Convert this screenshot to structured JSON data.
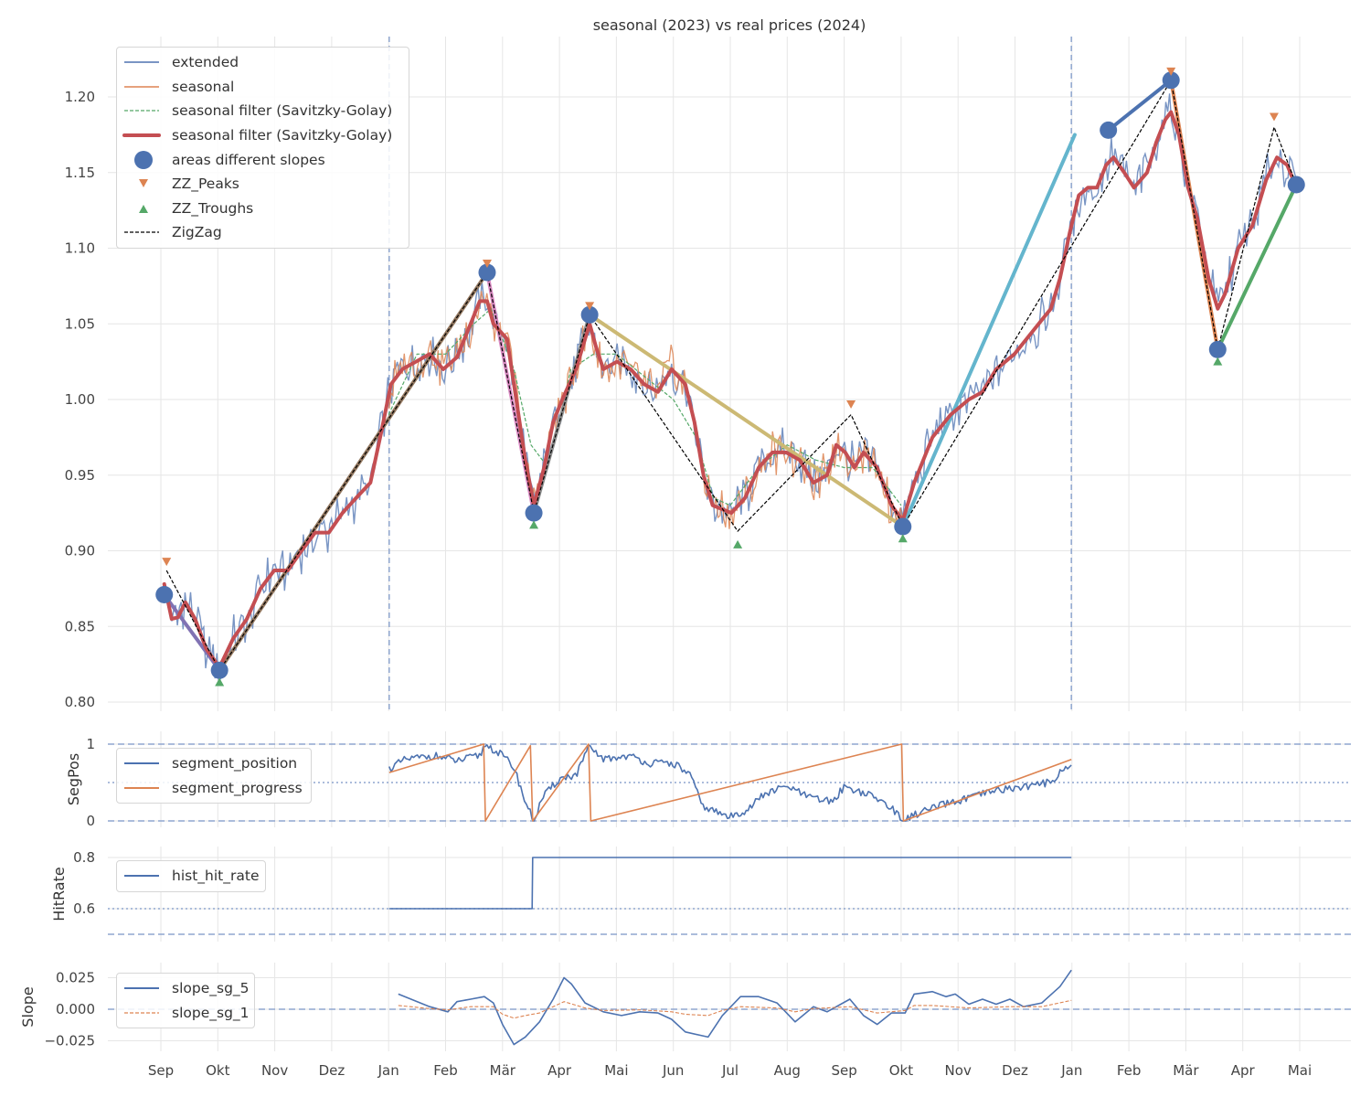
{
  "chart_data": [
    {
      "type": "line",
      "title": "seasonal (2023) vs real prices (2024)",
      "x_unit": "months since Sep 2023",
      "xticks": [
        "Sep",
        "Okt",
        "Nov",
        "Dez",
        "Jan",
        "Feb",
        "Mär",
        "Apr",
        "Mai",
        "Jun",
        "Jul",
        "Aug",
        "Sep",
        "Okt",
        "Nov",
        "Dez",
        "Jan",
        "Feb",
        "Mär",
        "Apr",
        "Mai"
      ],
      "ylabel": "",
      "ylim": [
        0.79,
        1.235
      ],
      "yticks": [
        "0.80",
        "0.85",
        "0.90",
        "0.95",
        "1.00",
        "1.05",
        "1.10",
        "1.15",
        "1.20"
      ],
      "ytick_values": [
        0.8,
        0.85,
        0.9,
        0.95,
        1.0,
        1.05,
        1.1,
        1.15,
        1.2
      ],
      "vlines": [
        4.01,
        15.99
      ],
      "legend": [
        "extended",
        "seasonal",
        "seasonal filter (Savitzky-Golay)",
        "seasonal filter (Savitzky-Golay)",
        "areas different slopes",
        "ZZ_Peaks",
        "ZZ_Troughs",
        "ZigZag"
      ],
      "legend_placement": "top-left",
      "colors": {
        "extended": "#4c72b0",
        "seasonal": "#dd8452",
        "filter_thin": "#55a868",
        "filter_thick": "#c44e52",
        "areas": "#4c72b0",
        "peaks": "#dd8452",
        "troughs": "#55a868",
        "zigzag": "#000000"
      },
      "sg_filter_thick": {
        "x": [
          0.06,
          0.19,
          0.3,
          0.43,
          0.6,
          0.8,
          1.03,
          1.27,
          1.51,
          1.75,
          1.99,
          2.23,
          2.47,
          2.71,
          2.95,
          3.19,
          3.43,
          3.68,
          3.88,
          4.04,
          4.24,
          4.48,
          4.72,
          4.96,
          5.2,
          5.44,
          5.6,
          5.73,
          5.84,
          6.08,
          6.24,
          6.4,
          6.55,
          6.73,
          6.89,
          7.05,
          7.29,
          7.53,
          7.64,
          7.77,
          8.01,
          8.25,
          8.49,
          8.73,
          8.97,
          9.21,
          9.37,
          9.53,
          9.69,
          10.02,
          10.26,
          10.5,
          10.74,
          10.98,
          11.22,
          11.46,
          11.7,
          11.86,
          12.02,
          12.18,
          12.34,
          12.58,
          12.83,
          13.03,
          13.23,
          13.55,
          13.87,
          14.19,
          14.43,
          14.67,
          14.99,
          15.31,
          15.63,
          15.79,
          15.96,
          16.12,
          16.28,
          16.44,
          16.6,
          16.73,
          16.92,
          17.09,
          17.32,
          17.48,
          17.64,
          17.74,
          17.88,
          18.04,
          18.2,
          18.4,
          18.56,
          18.69,
          18.92,
          19.17,
          19.41,
          19.6,
          19.78,
          19.94
        ],
        "y": [
          0.878,
          0.855,
          0.856,
          0.866,
          0.855,
          0.835,
          0.823,
          0.842,
          0.855,
          0.875,
          0.887,
          0.887,
          0.9,
          0.912,
          0.912,
          0.925,
          0.935,
          0.945,
          0.98,
          1.01,
          1.02,
          1.025,
          1.03,
          1.02,
          1.028,
          1.05,
          1.065,
          1.065,
          1.05,
          1.04,
          1.0,
          0.96,
          0.93,
          0.955,
          0.985,
          1.0,
          1.02,
          1.05,
          1.035,
          1.02,
          1.025,
          1.02,
          1.01,
          1.005,
          1.02,
          1.01,
          0.985,
          0.95,
          0.93,
          0.925,
          0.935,
          0.955,
          0.965,
          0.965,
          0.96,
          0.945,
          0.95,
          0.97,
          0.965,
          0.955,
          0.965,
          0.955,
          0.93,
          0.92,
          0.945,
          0.975,
          0.99,
          1.0,
          1.005,
          1.02,
          1.03,
          1.045,
          1.06,
          1.08,
          1.11,
          1.135,
          1.14,
          1.14,
          1.155,
          1.16,
          1.15,
          1.14,
          1.15,
          1.17,
          1.185,
          1.19,
          1.175,
          1.14,
          1.12,
          1.08,
          1.06,
          1.07,
          1.1,
          1.115,
          1.145,
          1.16,
          1.155,
          1.14
        ]
      },
      "sg_filter_thin": {
        "x": [
          4.0,
          4.5,
          5.0,
          5.5,
          5.8,
          6.2,
          6.5,
          6.8,
          7.2,
          7.6,
          8.0,
          8.5,
          9.0,
          9.4,
          9.7,
          10.0,
          10.5,
          11.0,
          11.5,
          12.0,
          12.5,
          13.0
        ],
        "y": [
          0.99,
          1.03,
          1.03,
          1.05,
          1.06,
          1.02,
          0.97,
          0.955,
          1.02,
          1.03,
          1.03,
          1.015,
          1.0,
          0.975,
          0.935,
          0.93,
          0.955,
          0.97,
          0.96,
          0.955,
          0.955,
          0.93
        ]
      },
      "extended_range": [
        0.06,
        19.94
      ],
      "seasonal_range": [
        4.01,
        13.03
      ],
      "areas_different_slopes": {
        "x": [
          0.06,
          1.03,
          5.73,
          6.55,
          7.53,
          13.03,
          16.64,
          17.74,
          18.56,
          19.94
        ],
        "y": [
          0.871,
          0.821,
          1.084,
          0.925,
          1.056,
          0.916,
          1.178,
          1.211,
          1.033,
          1.142
        ]
      },
      "slope_segments": [
        {
          "x": [
            0.06,
            1.03
          ],
          "y": [
            0.871,
            0.821
          ],
          "color": "#8172b3"
        },
        {
          "x": [
            1.03,
            5.73
          ],
          "y": [
            0.821,
            1.084
          ],
          "color": "#937860"
        },
        {
          "x": [
            5.73,
            6.55
          ],
          "y": [
            1.084,
            0.925
          ],
          "color": "#da8bc3"
        },
        {
          "x": [
            6.55,
            7.53
          ],
          "y": [
            0.925,
            1.056
          ],
          "color": "#8c8c8c"
        },
        {
          "x": [
            7.53,
            13.03
          ],
          "y": [
            1.056,
            0.916
          ],
          "color": "#ccb974"
        },
        {
          "x": [
            13.03,
            16.05
          ],
          "y": [
            0.916,
            1.175
          ],
          "color": "#64b5cd"
        },
        {
          "x": [
            16.64,
            17.74
          ],
          "y": [
            1.178,
            1.211
          ],
          "color": "#4c72b0"
        },
        {
          "x": [
            17.74,
            18.56
          ],
          "y": [
            1.211,
            1.033
          ],
          "color": "#dd8452"
        },
        {
          "x": [
            18.56,
            19.94
          ],
          "y": [
            1.033,
            1.142
          ],
          "color": "#55a868"
        }
      ],
      "zz_peaks": {
        "x": [
          0.1,
          5.73,
          7.53,
          12.12,
          17.74,
          19.55
        ],
        "y": [
          0.893,
          1.09,
          1.062,
          0.997,
          1.217,
          1.187
        ]
      },
      "zz_troughs": {
        "x": [
          1.03,
          6.55,
          10.13,
          13.03,
          18.56
        ],
        "y": [
          0.813,
          0.917,
          0.904,
          0.908,
          1.025
        ]
      },
      "zigzag": {
        "x": [
          0.1,
          1.03,
          5.73,
          6.55,
          7.53,
          10.13,
          12.12,
          13.03,
          17.74,
          18.56,
          19.55,
          19.94
        ],
        "y": [
          0.887,
          0.821,
          1.084,
          0.925,
          1.056,
          0.913,
          0.99,
          0.916,
          1.211,
          1.033,
          1.18,
          1.142
        ]
      }
    },
    {
      "type": "line",
      "ylabel": "SegPos",
      "yticks": [
        "0",
        "1"
      ],
      "ytick_values": [
        0,
        1
      ],
      "hlines": {
        "dashed": [
          0,
          1
        ],
        "dotted": [
          0.5
        ]
      },
      "legend": [
        "segment_position",
        "segment_progress"
      ],
      "legend_placement": "upper-left",
      "series": [
        {
          "name": "segment_position",
          "color": "#4c72b0",
          "x": [
            4.01,
            4.3,
            4.8,
            5.2,
            5.6,
            5.7,
            6.0,
            6.2,
            6.4,
            6.55,
            6.7,
            7.0,
            7.3,
            7.5,
            7.8,
            8.2,
            8.6,
            9.0,
            9.3,
            9.5,
            9.8,
            10.0,
            10.3,
            10.6,
            11.0,
            11.4,
            11.8,
            12.0,
            12.4,
            12.8,
            13.02,
            13.3,
            13.7,
            14.2,
            14.7,
            15.2,
            15.6,
            15.9,
            16.0
          ],
          "y": [
            0.68,
            0.8,
            0.85,
            0.78,
            0.85,
            1.0,
            0.85,
            0.7,
            0.25,
            0.0,
            0.3,
            0.55,
            0.6,
            0.95,
            0.8,
            0.85,
            0.75,
            0.75,
            0.6,
            0.2,
            0.1,
            0.05,
            0.15,
            0.35,
            0.45,
            0.3,
            0.25,
            0.45,
            0.35,
            0.2,
            0.0,
            0.1,
            0.2,
            0.3,
            0.4,
            0.45,
            0.5,
            0.7,
            0.75
          ]
        },
        {
          "name": "segment_progress",
          "color": "#dd8452",
          "x": [
            4.01,
            5.67,
            5.7,
            6.49,
            6.53,
            7.51,
            7.55,
            13.01,
            13.04,
            15.99
          ],
          "y": [
            0.63,
            1.0,
            0.0,
            0.98,
            0.0,
            1.0,
            0.0,
            1.0,
            0.0,
            0.8
          ]
        }
      ]
    },
    {
      "type": "line",
      "ylabel": "HitRate",
      "yticks": [
        "0.6",
        "0.8"
      ],
      "ytick_values": [
        0.6,
        0.8
      ],
      "hlines": {
        "dashed": [
          0.5
        ],
        "dotted": [
          0.6
        ]
      },
      "legend": [
        "hist_hit_rate"
      ],
      "legend_placement": "upper-left",
      "series": [
        {
          "name": "hist_hit_rate",
          "color": "#4c72b0",
          "x": [
            4.01,
            6.52,
            6.53,
            15.99
          ],
          "y": [
            0.6,
            0.6,
            0.8,
            0.8
          ]
        }
      ]
    },
    {
      "type": "line",
      "ylabel": "Slope",
      "yticks": [
        "−0.025",
        "0.000",
        "0.025"
      ],
      "ytick_values": [
        -0.025,
        0.0,
        0.025
      ],
      "hlines": {
        "dashed": [
          0
        ]
      },
      "legend": [
        "slope_sg_5",
        "slope_sg_1"
      ],
      "legend_placement": "upper-left",
      "series": [
        {
          "name": "slope_sg_5",
          "color": "#4c72b0",
          "dash": false,
          "x": [
            4.17,
            4.72,
            5.04,
            5.2,
            5.44,
            5.68,
            5.84,
            6.0,
            6.2,
            6.4,
            6.65,
            6.89,
            7.08,
            7.21,
            7.45,
            7.77,
            8.09,
            8.41,
            8.73,
            8.97,
            9.21,
            9.61,
            9.86,
            10.18,
            10.5,
            10.82,
            11.14,
            11.46,
            11.7,
            12.1,
            12.34,
            12.58,
            12.83,
            13.07,
            13.23,
            13.55,
            13.79,
            13.95,
            14.19,
            14.43,
            14.67,
            14.91,
            15.15,
            15.47,
            15.79,
            15.99
          ],
          "y": [
            0.012,
            0.002,
            -0.002,
            0.006,
            0.008,
            0.01,
            0.005,
            -0.012,
            -0.028,
            -0.022,
            -0.01,
            0.008,
            0.025,
            0.02,
            0.005,
            -0.002,
            -0.005,
            -0.002,
            -0.003,
            -0.008,
            -0.018,
            -0.022,
            -0.005,
            0.01,
            0.01,
            0.005,
            -0.01,
            0.002,
            -0.002,
            0.008,
            -0.005,
            -0.012,
            -0.003,
            -0.003,
            0.012,
            0.014,
            0.01,
            0.012,
            0.004,
            0.008,
            0.004,
            0.008,
            0.002,
            0.005,
            0.018,
            0.031
          ]
        },
        {
          "name": "slope_sg_1",
          "color": "#dd8452",
          "dash": true,
          "x": [
            4.17,
            4.72,
            5.04,
            5.44,
            5.84,
            6.0,
            6.2,
            6.4,
            6.65,
            6.89,
            7.08,
            7.45,
            7.77,
            8.41,
            8.97,
            9.21,
            9.61,
            9.86,
            10.18,
            10.82,
            11.14,
            11.46,
            12.1,
            12.58,
            13.07,
            13.23,
            13.55,
            14.19,
            14.91,
            15.47,
            15.99
          ],
          "y": [
            0.003,
            0.0005,
            -0.0005,
            0.002,
            0.002,
            -0.004,
            -0.007,
            -0.005,
            -0.003,
            0.002,
            0.006,
            0.001,
            -0.001,
            -0.0005,
            -0.002,
            -0.004,
            -0.005,
            -0.001,
            0.002,
            0.001,
            -0.002,
            0.0005,
            0.002,
            -0.003,
            -0.001,
            0.003,
            0.003,
            0.001,
            0.002,
            0.002,
            0.007
          ]
        }
      ]
    }
  ]
}
